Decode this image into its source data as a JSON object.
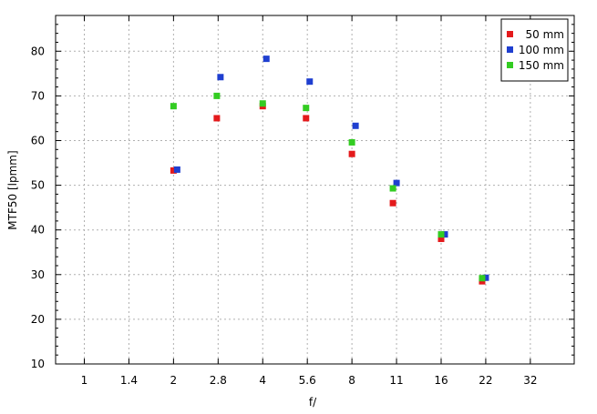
{
  "chart_data": {
    "type": "scatter",
    "xlabel": "f/",
    "ylabel": "MTF50 [lpmm]",
    "x_scale": "log2",
    "x_ticks": [
      "1",
      "1.4",
      "2",
      "2.8",
      "4",
      "5.6",
      "8",
      "11",
      "16",
      "22",
      "32"
    ],
    "xlim": [
      0.8,
      45
    ],
    "ylim": [
      10,
      88
    ],
    "y_ticks": [
      10,
      20,
      30,
      40,
      50,
      60,
      70,
      80
    ],
    "grid": true,
    "legend_position": "top-right",
    "series": [
      {
        "name": " 50 mm",
        "color": "#e41a1c",
        "points": [
          {
            "x": 2,
            "y": 53.3
          },
          {
            "x": 2.8,
            "y": 65.0
          },
          {
            "x": 4,
            "y": 67.7
          },
          {
            "x": 5.6,
            "y": 65.0
          },
          {
            "x": 8,
            "y": 57.0
          },
          {
            "x": 11,
            "y": 46.0
          },
          {
            "x": 16,
            "y": 38.0
          },
          {
            "x": 22,
            "y": 28.5
          }
        ]
      },
      {
        "name": "100 mm",
        "color": "#1f3fd0",
        "points": [
          {
            "x": 2,
            "y": 53.5
          },
          {
            "x": 2.8,
            "y": 74.2
          },
          {
            "x": 4,
            "y": 78.3
          },
          {
            "x": 5.6,
            "y": 73.2
          },
          {
            "x": 8,
            "y": 63.3
          },
          {
            "x": 11,
            "y": 50.5
          },
          {
            "x": 16,
            "y": 39.0
          },
          {
            "x": 22,
            "y": 29.3
          }
        ]
      },
      {
        "name": "150 mm",
        "color": "#33cc22",
        "points": [
          {
            "x": 2,
            "y": 67.7
          },
          {
            "x": 2.8,
            "y": 70.0
          },
          {
            "x": 4,
            "y": 68.3
          },
          {
            "x": 5.6,
            "y": 67.3
          },
          {
            "x": 8,
            "y": 59.6
          },
          {
            "x": 11,
            "y": 49.3
          },
          {
            "x": 16,
            "y": 39.0
          },
          {
            "x": 22,
            "y": 29.2
          }
        ]
      }
    ]
  }
}
